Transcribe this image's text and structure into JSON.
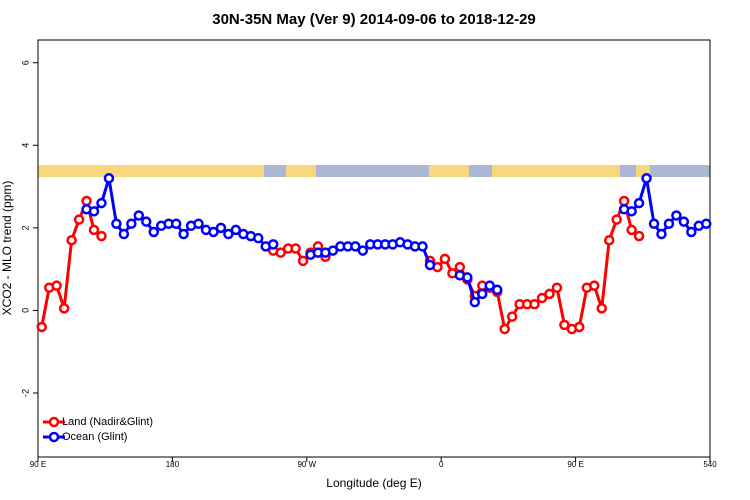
{
  "chart_data": {
    "type": "line",
    "title": "30N-35N May (Ver 9)   2014-09-06 to 2018-12-29",
    "x_label": "Longitude (deg E)",
    "y_label": "XCO2 - MLO trend (ppm)",
    "x": [
      92.5,
      97.5,
      102.5,
      107.5,
      112.5,
      117.5,
      122.5,
      127.5,
      132.5,
      137.5,
      142.5,
      147.5,
      152.5,
      157.5,
      162.5,
      167.5,
      172.5,
      177.5,
      182.5,
      187.5,
      192.5,
      197.5,
      202.5,
      207.5,
      212.5,
      217.5,
      222.5,
      227.5,
      232.5,
      237.5,
      242.5,
      247.5,
      252.5,
      257.5,
      262.5,
      267.5,
      272.5,
      277.5,
      282.5,
      287.5,
      292.5,
      297.5,
      302.5,
      307.5,
      312.5,
      317.5,
      322.5,
      327.5,
      332.5,
      337.5,
      342.5,
      347.5,
      352.5,
      357.5,
      362.5,
      367.5,
      372.5,
      377.5,
      382.5,
      387.5,
      392.5,
      397.5,
      402.5,
      407.5,
      412.5,
      417.5,
      422.5,
      427.5,
      432.5,
      437.5,
      442.5,
      447.5,
      452.5,
      457.5,
      462.5,
      467.5,
      472.5,
      477.5,
      482.5,
      487.5,
      492.5,
      497.5,
      502.5,
      507.5,
      512.5,
      517.5,
      522.5,
      527.5,
      532.5,
      537.5
    ],
    "series": [
      {
        "name": "Land (Nadir&Glint)",
        "color": "#ff0000",
        "values": [
          -0.4,
          0.55,
          0.6,
          0.05,
          1.7,
          2.2,
          2.65,
          1.95,
          1.8,
          null,
          null,
          null,
          null,
          null,
          null,
          null,
          null,
          null,
          null,
          null,
          null,
          null,
          null,
          null,
          null,
          null,
          null,
          null,
          null,
          null,
          null,
          1.45,
          1.4,
          1.5,
          1.5,
          1.2,
          1.4,
          1.55,
          1.3,
          null,
          null,
          null,
          null,
          null,
          null,
          null,
          null,
          null,
          null,
          null,
          null,
          null,
          1.2,
          1.05,
          1.25,
          0.9,
          1.05,
          0.75,
          0.35,
          0.6,
          0.55,
          0.45,
          -0.45,
          -0.15,
          0.15,
          0.15,
          0.15,
          0.3,
          0.4,
          0.55,
          -0.35,
          -0.45,
          -0.4,
          0.55,
          0.6,
          0.05,
          1.7,
          2.2,
          2.65,
          1.95,
          1.8,
          null,
          null,
          null,
          null,
          null,
          null,
          null,
          null,
          null
        ]
      },
      {
        "name": "Ocean (Glint)",
        "color": "#0000ff",
        "values": [
          null,
          null,
          null,
          null,
          null,
          null,
          2.45,
          2.4,
          2.6,
          3.2,
          2.1,
          1.85,
          2.1,
          2.3,
          2.15,
          1.9,
          2.05,
          2.1,
          2.1,
          1.85,
          2.05,
          2.1,
          1.95,
          1.9,
          2.0,
          1.85,
          1.95,
          1.85,
          1.8,
          1.75,
          1.55,
          1.6,
          null,
          null,
          null,
          null,
          1.35,
          1.4,
          1.4,
          1.45,
          1.55,
          1.55,
          1.55,
          1.45,
          1.6,
          1.6,
          1.6,
          1.6,
          1.65,
          1.6,
          1.55,
          1.55,
          1.1,
          null,
          null,
          null,
          0.85,
          0.8,
          0.2,
          0.4,
          0.6,
          0.5,
          null,
          null,
          null,
          null,
          null,
          null,
          null,
          null,
          null,
          null,
          null,
          null,
          null,
          null,
          null,
          null,
          2.45,
          2.4,
          2.6,
          3.2,
          2.1,
          1.85,
          2.1,
          2.3,
          2.15,
          1.9,
          2.05,
          2.1
        ]
      }
    ],
    "xlim": [
      90,
      540
    ],
    "xticks": [
      {
        "value": 90,
        "label": "90 E"
      },
      180,
      {
        "value": 270,
        "label": "90 W"
      },
      {
        "value": 360,
        "label": "0"
      },
      {
        "value": 450,
        "label": "90 E"
      },
      540
    ],
    "ylim": [
      -3.55,
      6.55
    ],
    "yticks": [
      -2,
      0,
      2,
      4,
      6
    ],
    "legend": "bottom-left"
  }
}
